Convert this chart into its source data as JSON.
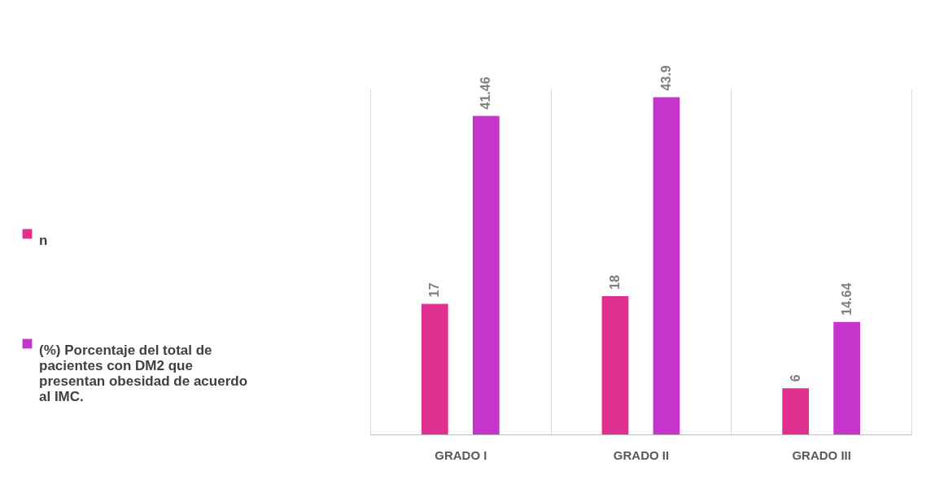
{
  "chart_data": {
    "type": "bar",
    "categories": [
      "GRADO I",
      "GRADO II",
      "GRADO III"
    ],
    "series": [
      {
        "name": "n",
        "color": "#e0308f",
        "values": [
          17,
          18,
          6
        ]
      },
      {
        "name": "(%) Porcentaje del total de pacientes con DM2 que presentan obesidad de acuerdo al IMC.",
        "color": "#c535cc",
        "values": [
          41.46,
          43.9,
          14.64
        ]
      }
    ],
    "data_labels": true,
    "grid": "x",
    "legend": "left"
  }
}
